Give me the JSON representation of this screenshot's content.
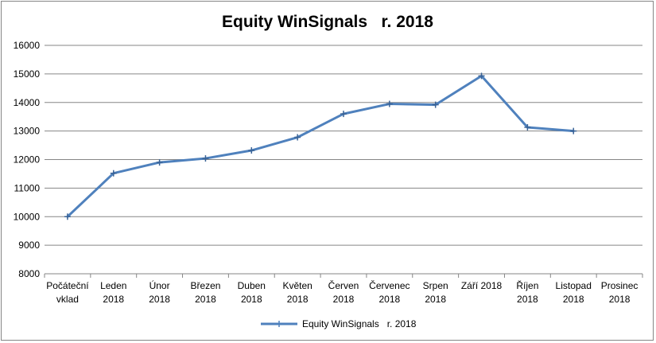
{
  "chart_data": {
    "type": "line",
    "title": "Equity WinSignals   r. 2018",
    "categories": [
      [
        "Počáteční",
        "vklad"
      ],
      [
        "Leden",
        "2018"
      ],
      [
        "Únor",
        "2018"
      ],
      [
        "Březen",
        "2018"
      ],
      [
        "Duben",
        "2018"
      ],
      [
        "Květen",
        "2018"
      ],
      [
        "Červen",
        "2018"
      ],
      [
        "Červenec",
        "2018"
      ],
      [
        "Srpen",
        "2018"
      ],
      [
        "Září 2018"
      ],
      [
        "Říjen",
        "2018"
      ],
      [
        "Listopad",
        "2018"
      ],
      [
        "Prosinec",
        "2018"
      ]
    ],
    "series": [
      {
        "name": "Equity WinSignals   r. 2018",
        "color": "#4f81bd",
        "values": [
          10000,
          11520,
          11900,
          12040,
          12320,
          12780,
          13600,
          13950,
          13920,
          14930,
          13130,
          13000,
          null
        ]
      }
    ],
    "yticks": [
      "8000",
      "9000",
      "10000",
      "11000",
      "12000",
      "13000",
      "14000",
      "15000",
      "16000"
    ],
    "ylim": [
      8000,
      16000
    ],
    "ystep": 1000,
    "grid": true,
    "legend": "bottom",
    "xlabel": "",
    "ylabel": ""
  }
}
